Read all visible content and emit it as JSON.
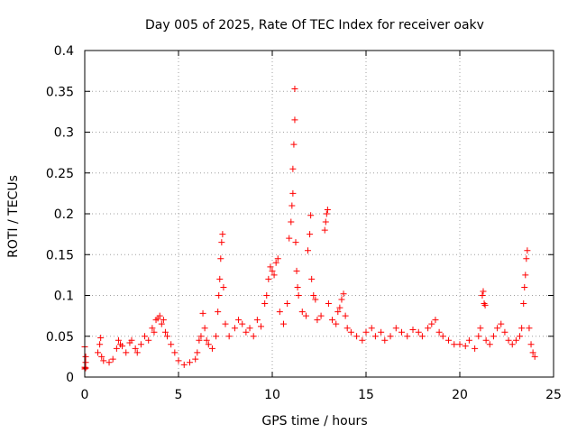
{
  "chart_data": {
    "type": "scatter",
    "title": "Day 005 of 2025, Rate Of TEC Index for receiver oakv",
    "xlabel": "GPS time / hours",
    "ylabel": "ROTI / TECUs",
    "xlim": [
      0,
      25
    ],
    "ylim": [
      0,
      0.4
    ],
    "xticks": [
      0,
      5,
      10,
      15,
      20,
      25
    ],
    "yticks": [
      0,
      0.05,
      0.1,
      0.15,
      0.2,
      0.25,
      0.3,
      0.35,
      0.4
    ],
    "xtick_labels": [
      "0",
      "5",
      "10",
      "15",
      "20",
      "25"
    ],
    "ytick_labels": [
      "0",
      "0.05",
      "0.1",
      "0.15",
      "0.2",
      "0.25",
      "0.3",
      "0.35",
      "0.4"
    ],
    "grid": true,
    "marker": "+",
    "color": "#ff0000",
    "series": [
      {
        "name": "ROTI",
        "points": [
          [
            0.0,
            0.037
          ],
          [
            0.0,
            0.012
          ],
          [
            0.0,
            0.01
          ],
          [
            0.05,
            0.025
          ],
          [
            0.05,
            0.018
          ],
          [
            0.05,
            0.011
          ],
          [
            0.7,
            0.03
          ],
          [
            0.8,
            0.04
          ],
          [
            0.85,
            0.048
          ],
          [
            0.9,
            0.025
          ],
          [
            1.0,
            0.02
          ],
          [
            1.3,
            0.018
          ],
          [
            1.5,
            0.022
          ],
          [
            1.7,
            0.035
          ],
          [
            1.8,
            0.045
          ],
          [
            1.9,
            0.04
          ],
          [
            2.0,
            0.038
          ],
          [
            2.2,
            0.03
          ],
          [
            2.4,
            0.042
          ],
          [
            2.5,
            0.045
          ],
          [
            2.7,
            0.035
          ],
          [
            2.8,
            0.03
          ],
          [
            3.0,
            0.04
          ],
          [
            3.2,
            0.05
          ],
          [
            3.4,
            0.045
          ],
          [
            3.6,
            0.06
          ],
          [
            3.7,
            0.055
          ],
          [
            3.8,
            0.07
          ],
          [
            3.9,
            0.072
          ],
          [
            4.0,
            0.075
          ],
          [
            4.1,
            0.065
          ],
          [
            4.2,
            0.07
          ],
          [
            4.3,
            0.055
          ],
          [
            4.4,
            0.05
          ],
          [
            4.6,
            0.04
          ],
          [
            4.8,
            0.03
          ],
          [
            5.0,
            0.02
          ],
          [
            5.3,
            0.015
          ],
          [
            5.6,
            0.018
          ],
          [
            5.9,
            0.022
          ],
          [
            6.0,
            0.03
          ],
          [
            6.1,
            0.045
          ],
          [
            6.2,
            0.05
          ],
          [
            6.3,
            0.078
          ],
          [
            6.4,
            0.06
          ],
          [
            6.5,
            0.045
          ],
          [
            6.6,
            0.04
          ],
          [
            6.8,
            0.035
          ],
          [
            7.0,
            0.05
          ],
          [
            7.1,
            0.08
          ],
          [
            7.15,
            0.1
          ],
          [
            7.2,
            0.12
          ],
          [
            7.25,
            0.145
          ],
          [
            7.3,
            0.165
          ],
          [
            7.35,
            0.175
          ],
          [
            7.4,
            0.11
          ],
          [
            7.5,
            0.065
          ],
          [
            7.7,
            0.05
          ],
          [
            8.0,
            0.06
          ],
          [
            8.2,
            0.07
          ],
          [
            8.4,
            0.065
          ],
          [
            8.6,
            0.055
          ],
          [
            8.8,
            0.06
          ],
          [
            9.0,
            0.05
          ],
          [
            9.2,
            0.07
          ],
          [
            9.4,
            0.062
          ],
          [
            9.6,
            0.09
          ],
          [
            9.7,
            0.1
          ],
          [
            9.8,
            0.12
          ],
          [
            9.9,
            0.135
          ],
          [
            10.0,
            0.13
          ],
          [
            10.1,
            0.125
          ],
          [
            10.2,
            0.14
          ],
          [
            10.3,
            0.145
          ],
          [
            10.4,
            0.08
          ],
          [
            10.6,
            0.065
          ],
          [
            10.8,
            0.09
          ],
          [
            10.9,
            0.17
          ],
          [
            11.0,
            0.19
          ],
          [
            11.05,
            0.21
          ],
          [
            11.1,
            0.225
          ],
          [
            11.1,
            0.255
          ],
          [
            11.15,
            0.285
          ],
          [
            11.2,
            0.315
          ],
          [
            11.2,
            0.353
          ],
          [
            11.25,
            0.165
          ],
          [
            11.3,
            0.13
          ],
          [
            11.35,
            0.11
          ],
          [
            11.4,
            0.1
          ],
          [
            11.6,
            0.08
          ],
          [
            11.8,
            0.075
          ],
          [
            11.9,
            0.155
          ],
          [
            12.0,
            0.175
          ],
          [
            12.05,
            0.198
          ],
          [
            12.1,
            0.12
          ],
          [
            12.2,
            0.1
          ],
          [
            12.3,
            0.095
          ],
          [
            12.4,
            0.07
          ],
          [
            12.6,
            0.075
          ],
          [
            12.8,
            0.18
          ],
          [
            12.85,
            0.19
          ],
          [
            12.9,
            0.2
          ],
          [
            12.95,
            0.205
          ],
          [
            13.0,
            0.09
          ],
          [
            13.2,
            0.07
          ],
          [
            13.4,
            0.065
          ],
          [
            13.5,
            0.08
          ],
          [
            13.6,
            0.085
          ],
          [
            13.7,
            0.095
          ],
          [
            13.8,
            0.102
          ],
          [
            13.9,
            0.075
          ],
          [
            14.0,
            0.06
          ],
          [
            14.2,
            0.055
          ],
          [
            14.5,
            0.05
          ],
          [
            14.8,
            0.045
          ],
          [
            15.0,
            0.055
          ],
          [
            15.3,
            0.06
          ],
          [
            15.5,
            0.05
          ],
          [
            15.8,
            0.055
          ],
          [
            16.0,
            0.045
          ],
          [
            16.3,
            0.05
          ],
          [
            16.6,
            0.06
          ],
          [
            16.9,
            0.055
          ],
          [
            17.2,
            0.05
          ],
          [
            17.5,
            0.058
          ],
          [
            17.8,
            0.055
          ],
          [
            18.0,
            0.05
          ],
          [
            18.3,
            0.06
          ],
          [
            18.5,
            0.065
          ],
          [
            18.7,
            0.07
          ],
          [
            18.9,
            0.055
          ],
          [
            19.1,
            0.05
          ],
          [
            19.4,
            0.045
          ],
          [
            19.7,
            0.04
          ],
          [
            20.0,
            0.04
          ],
          [
            20.3,
            0.038
          ],
          [
            20.5,
            0.045
          ],
          [
            20.8,
            0.035
          ],
          [
            21.0,
            0.05
          ],
          [
            21.1,
            0.06
          ],
          [
            21.2,
            0.1
          ],
          [
            21.25,
            0.105
          ],
          [
            21.3,
            0.09
          ],
          [
            21.35,
            0.088
          ],
          [
            21.4,
            0.045
          ],
          [
            21.6,
            0.04
          ],
          [
            21.8,
            0.05
          ],
          [
            22.0,
            0.06
          ],
          [
            22.2,
            0.065
          ],
          [
            22.4,
            0.055
          ],
          [
            22.6,
            0.045
          ],
          [
            22.8,
            0.04
          ],
          [
            23.0,
            0.045
          ],
          [
            23.2,
            0.05
          ],
          [
            23.3,
            0.06
          ],
          [
            23.4,
            0.09
          ],
          [
            23.45,
            0.11
          ],
          [
            23.5,
            0.125
          ],
          [
            23.55,
            0.145
          ],
          [
            23.6,
            0.155
          ],
          [
            23.7,
            0.06
          ],
          [
            23.8,
            0.04
          ],
          [
            23.9,
            0.03
          ],
          [
            24.0,
            0.025
          ]
        ]
      }
    ]
  }
}
